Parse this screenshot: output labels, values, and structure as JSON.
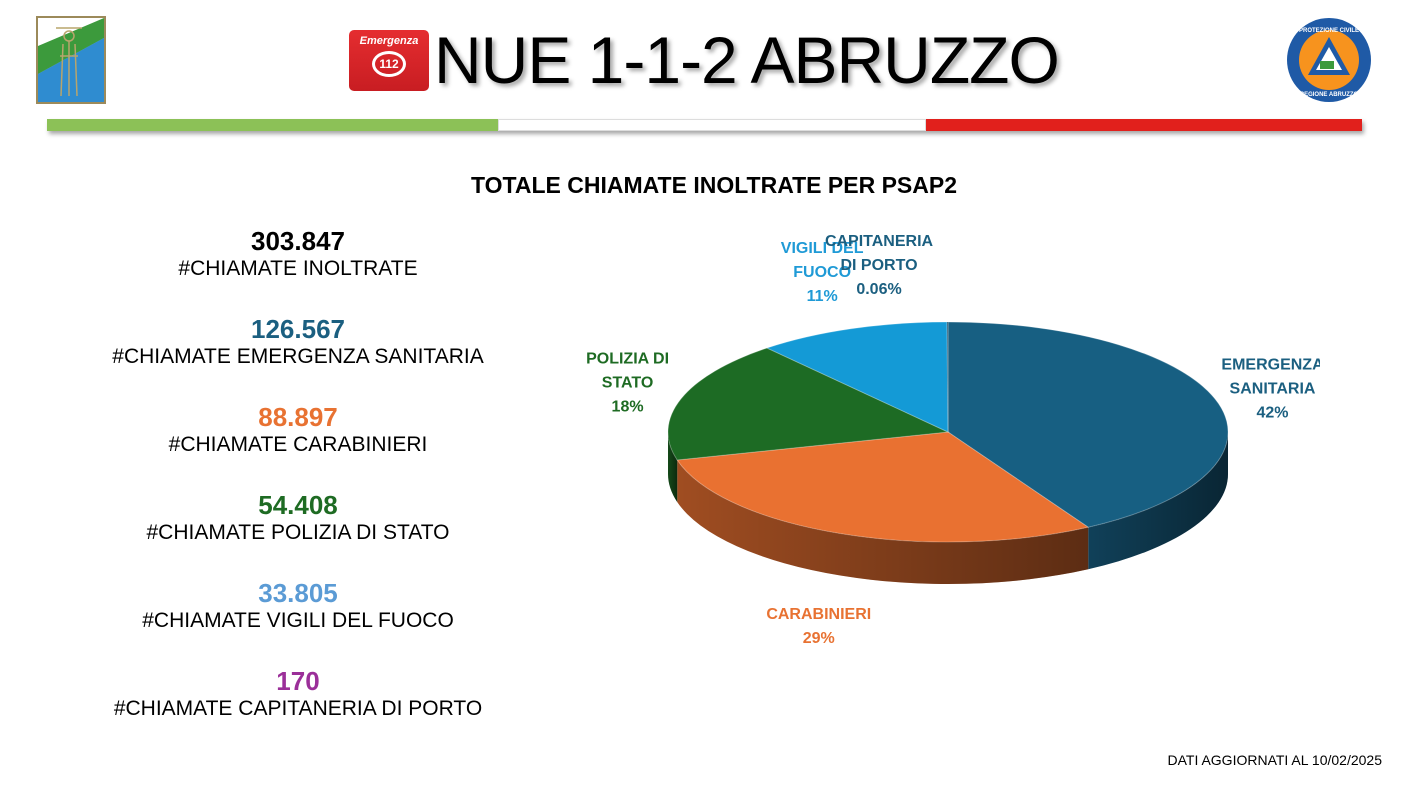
{
  "header": {
    "title": "NUE 1-1-2 ABRUZZO",
    "badge_top": "Emergenza",
    "badge_num": "112",
    "logo_right_ring": "PROTEZIONE CIVILE REGIONE ABRUZZO",
    "tricolor": [
      "#8cc157",
      "#ffffff",
      "#e1201c"
    ]
  },
  "stats": [
    {
      "value": "303.847",
      "label": "#CHIAMATE INOLTRATE",
      "color": "#000000"
    },
    {
      "value": "126.567",
      "label": "#CHIAMATE EMERGENZA SANITARIA",
      "color": "#1b5f80"
    },
    {
      "value": "88.897",
      "label": "#CHIAMATE CARABINIERI",
      "color": "#e87232"
    },
    {
      "value": "54.408",
      "label": "#CHIAMATE POLIZIA DI STATO",
      "color": "#1e6b23"
    },
    {
      "value": "33.805",
      "label": "#CHIAMATE VIGILI DEL FUOCO",
      "color": "#5b9bd5"
    },
    {
      "value": "170",
      "label": "#CHIAMATE CAPITANERIA DI PORTO",
      "color": "#9b2f99"
    }
  ],
  "chart_data": {
    "type": "pie",
    "title": "TOTALE CHIAMATE INOLTRATE PER PSAP2",
    "categories": [
      "EMERGENZA SANITARIA",
      "CARABINIERI",
      "POLIZIA DI STATO",
      "VIGILI DEL FUOCO",
      "CAPITANERIA DI PORTO"
    ],
    "values": [
      126567,
      88897,
      54408,
      33805,
      170
    ],
    "percent_labels": [
      "42%",
      "29%",
      "18%",
      "11%",
      "0.06%"
    ],
    "label_lines": [
      [
        "EMERGENZA",
        "SANITARIA"
      ],
      [
        "CARABINIERI"
      ],
      [
        "POLIZIA DI",
        "STATO"
      ],
      [
        "VIGILI DEL",
        "FUOCO"
      ],
      [
        "CAPITANERIA",
        "DI PORTO"
      ]
    ],
    "colors": [
      "#175f82",
      "#e97131",
      "#1d6b24",
      "#149ad6",
      "#0a3d5a"
    ],
    "label_colors": [
      "#1b5f80",
      "#e87232",
      "#1e6b23",
      "#1f9ad6",
      "#1b5f80"
    ],
    "style": "3d"
  },
  "footer": {
    "updated": "DATI AGGIORNATI AL 10/02/2025"
  }
}
